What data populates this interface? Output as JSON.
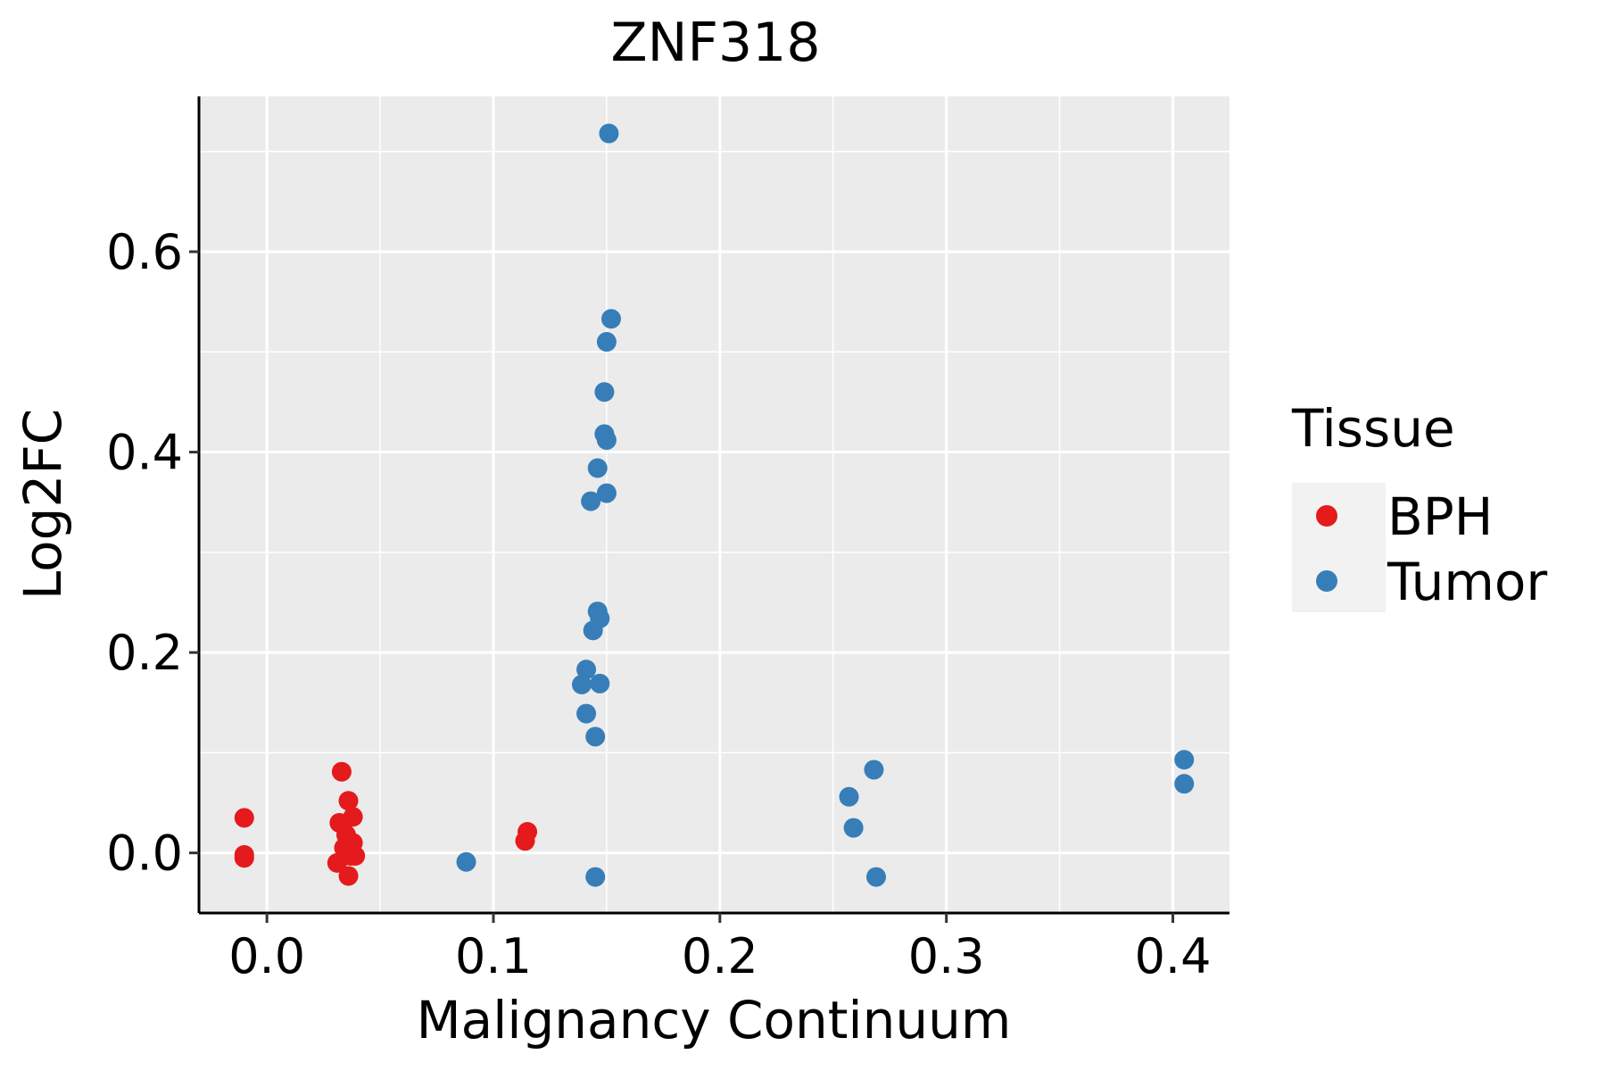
{
  "chart_data": {
    "type": "scatter",
    "title": "ZNF318",
    "xlabel": "Malignancy Continuum",
    "ylabel": "Log2FC",
    "xlim": [
      -0.03,
      0.425
    ],
    "ylim": [
      -0.06,
      0.755
    ],
    "x_ticks": [
      0.0,
      0.1,
      0.2,
      0.3,
      0.4
    ],
    "x_tick_labels": [
      "0.0",
      "0.1",
      "0.2",
      "0.3",
      "0.4"
    ],
    "y_ticks": [
      0.0,
      0.2,
      0.4,
      0.6
    ],
    "y_tick_labels": [
      "0.0",
      "0.2",
      "0.4",
      "0.6"
    ],
    "grid": true,
    "legend": {
      "title": "Tissue",
      "position": "right",
      "entries": [
        {
          "label": "BPH",
          "color": "#e41a1c"
        },
        {
          "label": "Tumor",
          "color": "#377eb8"
        }
      ]
    },
    "series": [
      {
        "name": "BPH",
        "color": "#e41a1c",
        "points": [
          [
            -0.01,
            0.035
          ],
          [
            -0.01,
            -0.002
          ],
          [
            -0.01,
            -0.005
          ],
          [
            0.033,
            0.081
          ],
          [
            0.036,
            0.052
          ],
          [
            0.038,
            0.036
          ],
          [
            0.032,
            0.03
          ],
          [
            0.035,
            0.018
          ],
          [
            0.038,
            0.01
          ],
          [
            0.034,
            0.005
          ],
          [
            0.037,
            -0.003
          ],
          [
            0.031,
            -0.01
          ],
          [
            0.036,
            -0.023
          ],
          [
            0.039,
            -0.003
          ],
          [
            0.115,
            0.021
          ],
          [
            0.114,
            0.012
          ]
        ]
      },
      {
        "name": "Tumor",
        "color": "#377eb8",
        "points": [
          [
            0.151,
            0.718
          ],
          [
            0.152,
            0.533
          ],
          [
            0.15,
            0.51
          ],
          [
            0.149,
            0.46
          ],
          [
            0.149,
            0.418
          ],
          [
            0.15,
            0.412
          ],
          [
            0.146,
            0.384
          ],
          [
            0.15,
            0.359
          ],
          [
            0.143,
            0.351
          ],
          [
            0.146,
            0.241
          ],
          [
            0.147,
            0.234
          ],
          [
            0.144,
            0.222
          ],
          [
            0.141,
            0.183
          ],
          [
            0.139,
            0.168
          ],
          [
            0.147,
            0.169
          ],
          [
            0.141,
            0.139
          ],
          [
            0.145,
            0.116
          ],
          [
            0.088,
            -0.009
          ],
          [
            0.145,
            -0.024
          ],
          [
            0.268,
            0.083
          ],
          [
            0.257,
            0.056
          ],
          [
            0.259,
            0.025
          ],
          [
            0.269,
            -0.024
          ],
          [
            0.405,
            0.093
          ],
          [
            0.405,
            0.069
          ]
        ]
      }
    ]
  }
}
